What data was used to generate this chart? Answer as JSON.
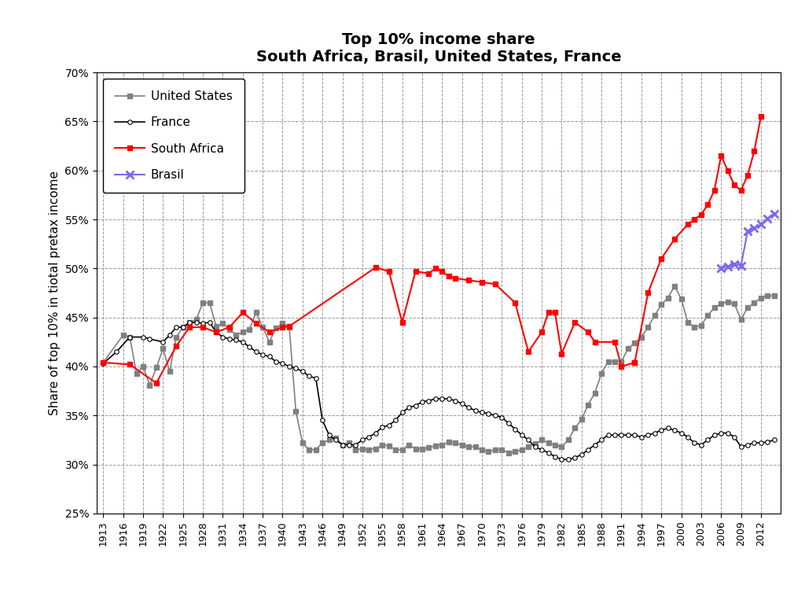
{
  "title_line1": "Top 10% income share",
  "title_line2": "South Africa, Brasil, United States, France",
  "ylabel": "Share of top 10% in tiotal pretax income",
  "ylim": [
    0.25,
    0.7
  ],
  "yticks": [
    0.25,
    0.3,
    0.35,
    0.4,
    0.45,
    0.5,
    0.55,
    0.6,
    0.65,
    0.7
  ],
  "south_africa": {
    "years": [
      1913,
      1917,
      1921,
      1924,
      1926,
      1928,
      1930,
      1932,
      1934,
      1936,
      1938,
      1940,
      1941,
      1954,
      1956,
      1958,
      1960,
      1962,
      1963,
      1964,
      1965,
      1966,
      1968,
      1970,
      1972,
      1975,
      1977,
      1979,
      1980,
      1981,
      1982,
      1984,
      1986,
      1987,
      1990,
      1991,
      1993,
      1993,
      1995,
      1997,
      1999,
      2001,
      2002,
      2003,
      2004,
      2005,
      2006,
      2007,
      2008,
      2009,
      2010,
      2011,
      2012
    ],
    "values": [
      0.404,
      0.402,
      0.383,
      0.421,
      0.44,
      0.44,
      0.435,
      0.44,
      0.455,
      0.444,
      0.435,
      0.44,
      0.441,
      0.501,
      0.497,
      0.445,
      0.497,
      0.495,
      0.5,
      0.497,
      0.492,
      0.49,
      0.488,
      0.486,
      0.484,
      0.465,
      0.415,
      0.435,
      0.455,
      0.455,
      0.413,
      0.445,
      0.435,
      0.425,
      0.425,
      0.4,
      0.404,
      0.404,
      0.475,
      0.51,
      0.53,
      0.545,
      0.55,
      0.555,
      0.565,
      0.58,
      0.615,
      0.6,
      0.585,
      0.58,
      0.595,
      0.62,
      0.655
    ]
  },
  "brasil": {
    "years": [
      2006,
      2007,
      2008,
      2009,
      2010,
      2011,
      2012,
      2013,
      2014
    ],
    "values": [
      0.5,
      0.502,
      0.504,
      0.503,
      0.538,
      0.541,
      0.545,
      0.551,
      0.556
    ]
  },
  "united_states": {
    "years": [
      1913,
      1916,
      1917,
      1918,
      1919,
      1920,
      1921,
      1922,
      1923,
      1924,
      1925,
      1926,
      1927,
      1928,
      1929,
      1930,
      1931,
      1932,
      1933,
      1934,
      1935,
      1936,
      1937,
      1938,
      1939,
      1940,
      1941,
      1942,
      1943,
      1944,
      1945,
      1946,
      1947,
      1948,
      1949,
      1950,
      1951,
      1952,
      1953,
      1954,
      1955,
      1956,
      1957,
      1958,
      1959,
      1960,
      1961,
      1962,
      1963,
      1964,
      1965,
      1966,
      1967,
      1968,
      1969,
      1970,
      1971,
      1972,
      1973,
      1974,
      1975,
      1976,
      1977,
      1978,
      1979,
      1980,
      1981,
      1982,
      1983,
      1984,
      1985,
      1986,
      1987,
      1988,
      1989,
      1990,
      1991,
      1992,
      1993,
      1994,
      1995,
      1996,
      1997,
      1998,
      1999,
      2000,
      2001,
      2002,
      2003,
      2004,
      2005,
      2006,
      2007,
      2008,
      2009,
      2010,
      2011,
      2012,
      2013,
      2014
    ],
    "values": [
      0.404,
      0.432,
      0.43,
      0.393,
      0.4,
      0.381,
      0.399,
      0.418,
      0.395,
      0.43,
      0.44,
      0.445,
      0.448,
      0.465,
      0.465,
      0.441,
      0.444,
      0.438,
      0.432,
      0.435,
      0.438,
      0.455,
      0.44,
      0.425,
      0.439,
      0.444,
      0.44,
      0.354,
      0.322,
      0.315,
      0.315,
      0.322,
      0.325,
      0.327,
      0.32,
      0.322,
      0.315,
      0.316,
      0.315,
      0.316,
      0.32,
      0.319,
      0.315,
      0.315,
      0.32,
      0.316,
      0.316,
      0.317,
      0.319,
      0.32,
      0.323,
      0.322,
      0.32,
      0.318,
      0.318,
      0.315,
      0.313,
      0.315,
      0.315,
      0.312,
      0.313,
      0.315,
      0.318,
      0.321,
      0.325,
      0.322,
      0.32,
      0.318,
      0.325,
      0.337,
      0.346,
      0.361,
      0.373,
      0.393,
      0.405,
      0.405,
      0.405,
      0.418,
      0.424,
      0.43,
      0.44,
      0.452,
      0.463,
      0.47,
      0.482,
      0.469,
      0.445,
      0.44,
      0.442,
      0.452,
      0.46,
      0.464,
      0.466,
      0.464,
      0.448,
      0.46,
      0.465,
      0.47,
      0.472,
      0.472
    ]
  },
  "france": {
    "years": [
      1913,
      1915,
      1917,
      1919,
      1920,
      1922,
      1923,
      1924,
      1925,
      1926,
      1927,
      1928,
      1929,
      1930,
      1931,
      1932,
      1933,
      1934,
      1935,
      1936,
      1937,
      1938,
      1939,
      1940,
      1941,
      1942,
      1943,
      1944,
      1945,
      1946,
      1947,
      1948,
      1949,
      1950,
      1951,
      1952,
      1953,
      1954,
      1955,
      1956,
      1957,
      1958,
      1959,
      1960,
      1961,
      1962,
      1963,
      1964,
      1965,
      1966,
      1967,
      1968,
      1969,
      1970,
      1971,
      1972,
      1973,
      1974,
      1975,
      1976,
      1977,
      1978,
      1979,
      1980,
      1981,
      1982,
      1983,
      1984,
      1985,
      1986,
      1987,
      1988,
      1989,
      1990,
      1991,
      1992,
      1993,
      1994,
      1995,
      1996,
      1997,
      1998,
      1999,
      2000,
      2001,
      2002,
      2003,
      2004,
      2005,
      2006,
      2007,
      2008,
      2009,
      2010,
      2011,
      2012,
      2013,
      2014
    ],
    "values": [
      0.403,
      0.415,
      0.43,
      0.43,
      0.428,
      0.425,
      0.432,
      0.44,
      0.44,
      0.445,
      0.445,
      0.444,
      0.445,
      0.435,
      0.43,
      0.428,
      0.427,
      0.425,
      0.42,
      0.415,
      0.412,
      0.41,
      0.405,
      0.403,
      0.4,
      0.398,
      0.395,
      0.39,
      0.388,
      0.345,
      0.33,
      0.325,
      0.32,
      0.32,
      0.32,
      0.325,
      0.328,
      0.332,
      0.338,
      0.34,
      0.345,
      0.353,
      0.358,
      0.36,
      0.364,
      0.365,
      0.367,
      0.367,
      0.367,
      0.365,
      0.362,
      0.358,
      0.355,
      0.353,
      0.352,
      0.35,
      0.348,
      0.342,
      0.336,
      0.33,
      0.325,
      0.318,
      0.315,
      0.312,
      0.308,
      0.305,
      0.305,
      0.307,
      0.31,
      0.315,
      0.32,
      0.325,
      0.33,
      0.33,
      0.33,
      0.33,
      0.33,
      0.328,
      0.33,
      0.332,
      0.335,
      0.337,
      0.335,
      0.332,
      0.328,
      0.322,
      0.32,
      0.325,
      0.33,
      0.332,
      0.332,
      0.328,
      0.318,
      0.32,
      0.322,
      0.322,
      0.323,
      0.325
    ]
  },
  "south_africa_color": "#FF0000",
  "brasil_color": "#7B68EE",
  "us_color": "#808080",
  "france_color": "#000000",
  "background_color": "#FFFFFF",
  "title_fontsize": 14,
  "axis_label_fontsize": 11,
  "tick_fontsize": 9,
  "legend_fontsize": 11
}
